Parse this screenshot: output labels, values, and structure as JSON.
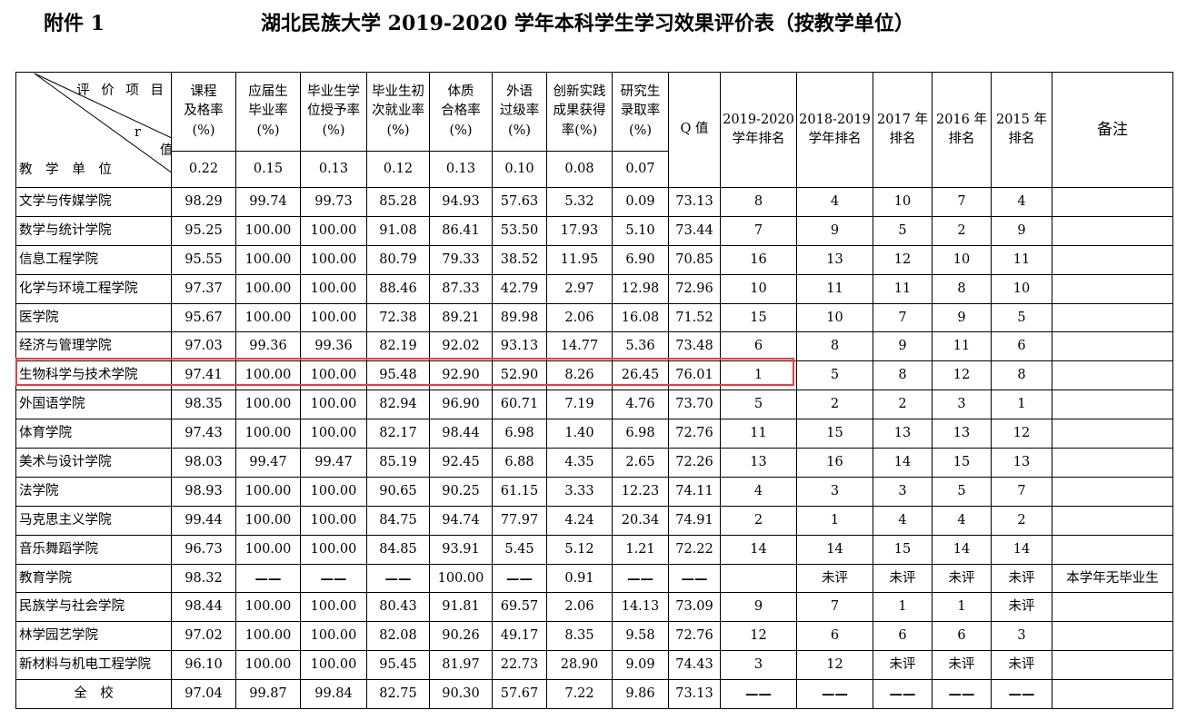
{
  "header": {
    "attachment": "附件 1",
    "title": "湖北民族大学 2019-2020 学年本科学生学习效果评价表（按教学单位）"
  },
  "table": {
    "corner": {
      "items": "评 价 项 目",
      "r": "r",
      "value": "值",
      "unit": "教 学 单 位"
    },
    "indicator_headers": [
      {
        "label": "课程\n及格率\n(%)",
        "weight": "0.22"
      },
      {
        "label": "应届生\n毕业率\n(%)",
        "weight": "0.15"
      },
      {
        "label": "毕业生学\n位授予率\n(%)",
        "weight": "0.13"
      },
      {
        "label": "毕业生初\n次就业率\n(%)",
        "weight": "0.12"
      },
      {
        "label": "体质\n合格率\n(%)",
        "weight": "0.13"
      },
      {
        "label": "外语\n过级率\n(%)",
        "weight": "0.10"
      },
      {
        "label": "创新实践\n成果获得\n率(%)",
        "weight": "0.08"
      },
      {
        "label": "研究生\n录取率\n(%)",
        "weight": "0.07"
      }
    ],
    "q_header": "Q 值",
    "rank_headers": [
      "2019-2020\n学年排名",
      "2018-2019\n学年排名",
      "2017 年\n排名",
      "2016 年\n排名",
      "2015 年\n排名"
    ],
    "remark_header": "备注",
    "rows": [
      [
        "文学与传媒学院",
        "98.29",
        "99.74",
        "99.73",
        "85.28",
        "94.93",
        "57.63",
        "5.32",
        "0.09",
        "73.13",
        "8",
        "4",
        "10",
        "7",
        "4",
        ""
      ],
      [
        "数学与统计学院",
        "95.25",
        "100.00",
        "100.00",
        "91.08",
        "86.41",
        "53.50",
        "17.93",
        "5.10",
        "73.44",
        "7",
        "9",
        "5",
        "2",
        "9",
        ""
      ],
      [
        "信息工程学院",
        "95.55",
        "100.00",
        "100.00",
        "80.79",
        "79.33",
        "38.52",
        "11.95",
        "6.90",
        "70.85",
        "16",
        "13",
        "12",
        "10",
        "11",
        ""
      ],
      [
        "化学与环境工程学院",
        "97.37",
        "100.00",
        "100.00",
        "88.46",
        "87.33",
        "42.79",
        "2.97",
        "12.98",
        "72.96",
        "10",
        "11",
        "11",
        "8",
        "10",
        ""
      ],
      [
        "医学院",
        "95.67",
        "100.00",
        "100.00",
        "72.38",
        "89.21",
        "89.98",
        "2.06",
        "16.08",
        "71.52",
        "15",
        "10",
        "7",
        "9",
        "5",
        ""
      ],
      [
        "经济与管理学院",
        "97.03",
        "99.36",
        "99.36",
        "82.19",
        "92.02",
        "93.13",
        "14.77",
        "5.36",
        "73.48",
        "6",
        "8",
        "9",
        "11",
        "6",
        ""
      ],
      [
        "生物科学与技术学院",
        "97.41",
        "100.00",
        "100.00",
        "95.48",
        "92.90",
        "52.90",
        "8.26",
        "26.45",
        "76.01",
        "1",
        "5",
        "8",
        "12",
        "8",
        ""
      ],
      [
        "外国语学院",
        "98.35",
        "100.00",
        "100.00",
        "82.94",
        "96.90",
        "60.71",
        "7.19",
        "4.76",
        "73.70",
        "5",
        "2",
        "2",
        "3",
        "1",
        ""
      ],
      [
        "体育学院",
        "97.43",
        "100.00",
        "100.00",
        "82.17",
        "98.44",
        "6.98",
        "1.40",
        "6.98",
        "72.76",
        "11",
        "15",
        "13",
        "13",
        "12",
        ""
      ],
      [
        "美术与设计学院",
        "98.03",
        "99.47",
        "99.47",
        "85.19",
        "92.45",
        "6.88",
        "4.35",
        "2.65",
        "72.26",
        "13",
        "16",
        "14",
        "15",
        "13",
        ""
      ],
      [
        "法学院",
        "98.93",
        "100.00",
        "100.00",
        "90.65",
        "90.25",
        "61.15",
        "3.33",
        "12.23",
        "74.11",
        "4",
        "3",
        "3",
        "5",
        "7",
        ""
      ],
      [
        "马克思主义学院",
        "99.44",
        "100.00",
        "100.00",
        "84.75",
        "94.74",
        "77.97",
        "4.24",
        "20.34",
        "74.91",
        "2",
        "1",
        "4",
        "4",
        "2",
        ""
      ],
      [
        "音乐舞蹈学院",
        "96.73",
        "100.00",
        "100.00",
        "84.85",
        "93.91",
        "5.45",
        "5.12",
        "1.21",
        "72.22",
        "14",
        "14",
        "15",
        "14",
        "14",
        ""
      ],
      [
        "教育学院",
        "98.32",
        "——",
        "——",
        "——",
        "100.00",
        "——",
        "0.91",
        "——",
        "——",
        "",
        "未评",
        "未评",
        "未评",
        "未评",
        "本学年无毕业生"
      ],
      [
        "民族学与社会学院",
        "98.44",
        "100.00",
        "100.00",
        "80.43",
        "91.81",
        "69.57",
        "2.06",
        "14.13",
        "73.09",
        "9",
        "7",
        "1",
        "1",
        "未评",
        ""
      ],
      [
        "林学园艺学院",
        "97.02",
        "100.00",
        "100.00",
        "82.08",
        "90.26",
        "49.17",
        "8.35",
        "9.58",
        "72.76",
        "12",
        "6",
        "6",
        "6",
        "3",
        ""
      ],
      [
        "新材料与机电工程学院",
        "96.10",
        "100.00",
        "100.00",
        "95.45",
        "81.97",
        "22.73",
        "28.90",
        "9.09",
        "74.43",
        "3",
        "12",
        "未评",
        "未评",
        "未评",
        ""
      ]
    ],
    "total_row": [
      "全　校",
      "97.04",
      "99.87",
      "99.84",
      "82.75",
      "90.30",
      "57.67",
      "7.22",
      "9.86",
      "73.13",
      "——",
      "——",
      "——",
      "——",
      "——",
      ""
    ],
    "highlighted_row": "生物科学与技术学院",
    "highlight_color": "#f03c3c"
  }
}
